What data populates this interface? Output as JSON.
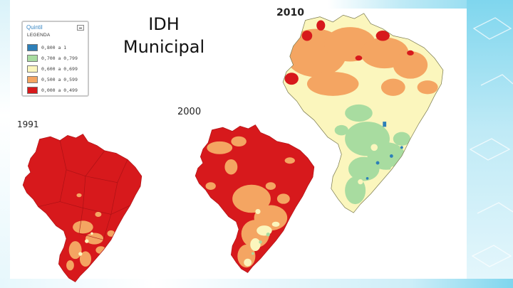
{
  "slide": {
    "title_line1": "IDH",
    "title_line2": "Municipal"
  },
  "legend": {
    "title": "Quintil",
    "subtitle": "LEGENDA",
    "items": [
      {
        "label": "0,800 a 1",
        "color": "#2d7fb8"
      },
      {
        "label": "0,700 a 0,799",
        "color": "#a8dca0"
      },
      {
        "label": "0,600 a 0,699",
        "color": "#fbf6bd"
      },
      {
        "label": "0,500 a 0,599",
        "color": "#f4a562"
      },
      {
        "label": "0,000 a 0,499",
        "color": "#d7191c"
      }
    ]
  },
  "maps": [
    {
      "year": "1991"
    },
    {
      "year": "2000"
    },
    {
      "year": "2010"
    }
  ],
  "colors": {
    "very_low": "#d7191c",
    "low": "#f4a562",
    "medium": "#fbf6bd",
    "high": "#a8dca0",
    "very_high": "#2d7fb8",
    "frame": "#7fd6ee"
  }
}
